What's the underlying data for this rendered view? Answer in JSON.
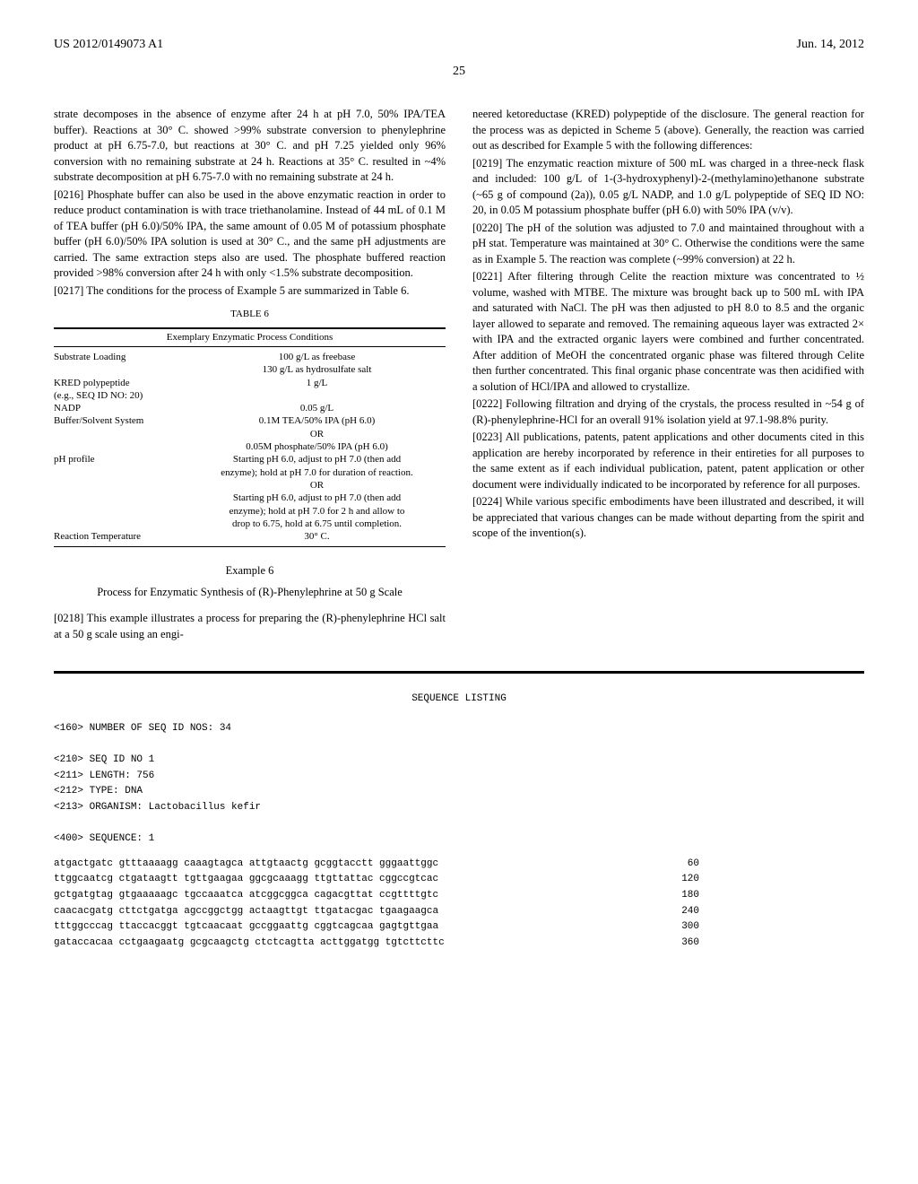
{
  "header": {
    "left": "US 2012/0149073 A1",
    "right": "Jun. 14, 2012"
  },
  "page_number": "25",
  "left_column": {
    "intro_text": "strate decomposes in the absence of enzyme after 24 h at pH 7.0, 50% IPA/TEA buffer). Reactions at 30° C. showed >99% substrate conversion to phenylephrine product at pH 6.75-7.0, but reactions at 30° C. and pH 7.25 yielded only 96% conversion with no remaining substrate at 24 h. Reactions at 35° C. resulted in ~4% substrate decomposition at pH 6.75-7.0 with no remaining substrate at 24 h.",
    "p0216": "[0216]   Phosphate buffer can also be used in the above enzymatic reaction in order to reduce product contamination is with trace triethanolamine. Instead of 44 mL of 0.1 M of TEA buffer (pH 6.0)/50% IPA, the same amount of 0.05 M of potassium phosphate buffer (pH 6.0)/50% IPA solution is used at 30° C., and the same pH adjustments are carried. The same extraction steps also are used. The phosphate buffered reaction provided >98% conversion after 24 h with only <1.5% substrate decomposition.",
    "p0217": "[0217]   The conditions for the process of Example 5 are summarized in Table 6.",
    "table": {
      "title": "TABLE 6",
      "subtitle": "Exemplary Enzymatic Process Conditions",
      "rows": [
        {
          "label": "Substrate Loading",
          "value": "100 g/L as freebase"
        },
        {
          "label": "",
          "value": "130 g/L as hydrosulfate salt"
        },
        {
          "label": "KRED polypeptide",
          "value": "1 g/L"
        },
        {
          "label": "(e.g., SEQ ID NO: 20)",
          "value": ""
        },
        {
          "label": "NADP",
          "value": "0.05 g/L"
        },
        {
          "label": "Buffer/Solvent System",
          "value": "0.1M TEA/50% IPA (pH 6.0)"
        },
        {
          "label": "",
          "value": "OR"
        },
        {
          "label": "",
          "value": "0.05M phosphate/50% IPA (pH 6.0)"
        },
        {
          "label": "pH profile",
          "value": "Starting pH 6.0, adjust to pH 7.0 (then add"
        },
        {
          "label": "",
          "value": "enzyme); hold at pH 7.0 for duration of reaction."
        },
        {
          "label": "",
          "value": "OR"
        },
        {
          "label": "",
          "value": "Starting pH 6.0, adjust to pH 7.0 (then add"
        },
        {
          "label": "",
          "value": "enzyme); hold at pH 7.0 for 2 h and allow to"
        },
        {
          "label": "",
          "value": "drop to 6.75, hold at 6.75 until completion."
        },
        {
          "label": "Reaction Temperature",
          "value": "30° C."
        }
      ]
    },
    "example_heading": "Example 6",
    "example_subheading": "Process for Enzymatic Synthesis of (R)-Phenylephrine at 50 g Scale",
    "p0218": "[0218]   This example illustrates a process for preparing the (R)-phenylephrine HCl salt at a 50 g scale using an engi-"
  },
  "right_column": {
    "cont_text": "neered ketoreductase (KRED) polypeptide of the disclosure. The general reaction for the process was as depicted in Scheme 5 (above). Generally, the reaction was carried out as described for Example 5 with the following differences:",
    "p0219": "[0219]   The enzymatic reaction mixture of 500 mL was charged in a three-neck flask and included: 100 g/L of 1-(3-hydroxyphenyl)-2-(methylamino)ethanone substrate (~65 g of compound (2a)), 0.05 g/L NADP, and 1.0 g/L polypeptide of SEQ ID NO: 20, in 0.05 M potassium phosphate buffer (pH 6.0) with 50% IPA (v/v).",
    "p0220": "[0220]   The pH of the solution was adjusted to 7.0 and maintained throughout with a pH stat. Temperature was maintained at 30° C. Otherwise the conditions were the same as in Example 5. The reaction was complete (~99% conversion) at 22 h.",
    "p0221": "[0221]   After filtering through Celite the reaction mixture was concentrated to ½ volume, washed with MTBE. The mixture was brought back up to 500 mL with IPA and saturated with NaCl. The pH was then adjusted to pH 8.0 to 8.5 and the organic layer allowed to separate and removed. The remaining aqueous layer was extracted 2× with IPA and the extracted organic layers were combined and further concentrated. After addition of MeOH the concentrated organic phase was filtered through Celite then further concentrated. This final organic phase concentrate was then acidified with a solution of HCl/IPA and allowed to crystallize.",
    "p0222": "[0222]   Following filtration and drying of the crystals, the process resulted in ~54 g of (R)-phenylephrine-HCl for an overall 91% isolation yield at 97.1-98.8% purity.",
    "p0223": "[0223]   All publications, patents, patent applications and other documents cited in this application are hereby incorporated by reference in their entireties for all purposes to the same extent as if each individual publication, patent, patent application or other document were individually indicated to be incorporated by reference for all purposes.",
    "p0224": "[0224]   While various specific embodiments have been illustrated and described, it will be appreciated that various changes can be made without departing from the spirit and scope of the invention(s)."
  },
  "sequence_listing": {
    "title": "SEQUENCE LISTING",
    "meta": [
      "<160> NUMBER OF SEQ ID NOS: 34",
      "",
      "<210> SEQ ID NO 1",
      "<211> LENGTH: 756",
      "<212> TYPE: DNA",
      "<213> ORGANISM: Lactobacillus kefir",
      "",
      "<400> SEQUENCE: 1"
    ],
    "rows": [
      {
        "seq": "atgactgatc gtttaaaagg caaagtagca attgtaactg gcggtacctt gggaattggc",
        "num": "60"
      },
      {
        "seq": "ttggcaatcg ctgataagtt tgttgaagaa ggcgcaaagg ttgttattac cggccgtcac",
        "num": "120"
      },
      {
        "seq": "gctgatgtag gtgaaaaagc tgccaaatca atcggcggca cagacgttat ccgttttgtc",
        "num": "180"
      },
      {
        "seq": "caacacgatg cttctgatga agccggctgg actaagttgt ttgatacgac tgaagaagca",
        "num": "240"
      },
      {
        "seq": "tttggcccag ttaccacggt tgtcaacaat gccggaattg cggtcagcaa gagtgttgaa",
        "num": "300"
      },
      {
        "seq": "gataccacaa cctgaagaatg gcgcaagctg ctctcagtta acttggatgg tgtcttcttc",
        "num": "360"
      }
    ]
  }
}
